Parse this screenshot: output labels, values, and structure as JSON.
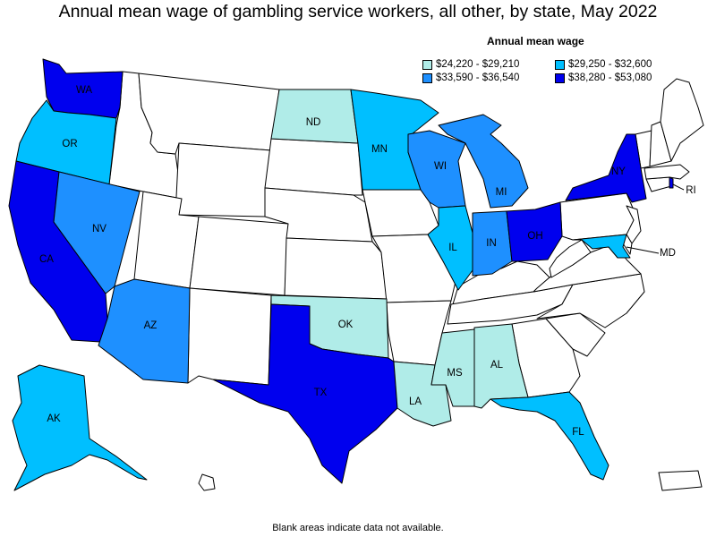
{
  "title": "Annual mean wage of gambling service workers, all other, by state, May 2022",
  "legend": {
    "title": "Annual mean wage",
    "items": [
      {
        "range": "$24,220 - $29,210",
        "color": "#b0ece8"
      },
      {
        "range": "$29,250 - $32,600",
        "color": "#00bfff"
      },
      {
        "range": "$33,590 - $36,540",
        "color": "#1e90ff"
      },
      {
        "range": "$38,280 - $53,080",
        "color": "#0000ee"
      }
    ]
  },
  "footnote": "Blank areas indicate data not available.",
  "states": {
    "WA": {
      "label": "WA",
      "bin": 3
    },
    "OR": {
      "label": "OR",
      "bin": 1
    },
    "CA": {
      "label": "CA",
      "bin": 3
    },
    "NV": {
      "label": "NV",
      "bin": 2
    },
    "AZ": {
      "label": "AZ",
      "bin": 2
    },
    "ND": {
      "label": "ND",
      "bin": 0
    },
    "MN": {
      "label": "MN",
      "bin": 1
    },
    "WI": {
      "label": "WI",
      "bin": 2
    },
    "MI": {
      "label": "MI",
      "bin": 2
    },
    "IL": {
      "label": "IL",
      "bin": 1
    },
    "IN": {
      "label": "IN",
      "bin": 2
    },
    "OH": {
      "label": "OH",
      "bin": 3
    },
    "NY": {
      "label": "NY",
      "bin": 3
    },
    "RI": {
      "label": "RI",
      "bin": 3
    },
    "MD": {
      "label": "MD",
      "bin": 1
    },
    "OK": {
      "label": "OK",
      "bin": 0
    },
    "TX": {
      "label": "TX",
      "bin": 3
    },
    "LA": {
      "label": "LA",
      "bin": 0
    },
    "MS": {
      "label": "MS",
      "bin": 0
    },
    "AL": {
      "label": "AL",
      "bin": 0
    },
    "FL": {
      "label": "FL",
      "bin": 1
    },
    "AK": {
      "label": "AK",
      "bin": 1
    }
  },
  "blank_color": "#ffffff"
}
